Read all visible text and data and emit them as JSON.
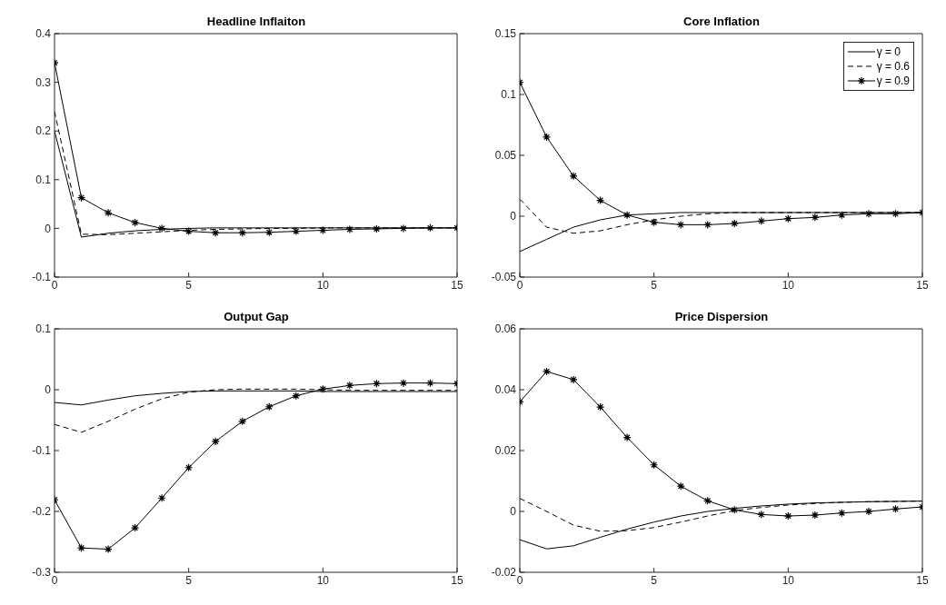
{
  "chart_data": [
    {
      "type": "line",
      "title": "Headline Inflaiton",
      "x": [
        0,
        1,
        2,
        3,
        4,
        5,
        6,
        7,
        8,
        9,
        10,
        11,
        12,
        13,
        14,
        15
      ],
      "xlim": [
        0,
        15
      ],
      "xticks": [
        0,
        5,
        10,
        15
      ],
      "ylim": [
        -0.1,
        0.4
      ],
      "yticks": [
        -0.1,
        0,
        0.1,
        0.2,
        0.3,
        0.4
      ],
      "legend": false,
      "series": [
        {
          "color": "#000000",
          "line_style": "solid",
          "marker": "none",
          "values": [
            0.2,
            -0.018,
            -0.01,
            -0.005,
            -0.002,
            0,
            0.001,
            0.001,
            0.001,
            0.001,
            0.001,
            0.001,
            0.001,
            0.001,
            0.001,
            0.001
          ]
        },
        {
          "color": "#000000",
          "line_style": "dashed",
          "marker": "none",
          "values": [
            0.24,
            -0.012,
            -0.013,
            -0.01,
            -0.007,
            -0.004,
            -0.002,
            -0.001,
            0,
            0,
            0.001,
            0.001,
            0.001,
            0.001,
            0.001,
            0.001
          ]
        },
        {
          "color": "#000000",
          "line_style": "solid",
          "marker": "cross",
          "values": [
            0.34,
            0.063,
            0.032,
            0.012,
            0,
            -0.006,
            -0.009,
            -0.009,
            -0.008,
            -0.006,
            -0.004,
            -0.002,
            -0.001,
            0,
            0.001,
            0.001
          ]
        }
      ]
    },
    {
      "type": "line",
      "title": "Core Inflation",
      "x": [
        0,
        1,
        2,
        3,
        4,
        5,
        6,
        7,
        8,
        9,
        10,
        11,
        12,
        13,
        14,
        15
      ],
      "xlim": [
        0,
        15
      ],
      "xticks": [
        0,
        5,
        10,
        15
      ],
      "ylim": [
        -0.05,
        0.15
      ],
      "yticks": [
        -0.05,
        0,
        0.05,
        0.1,
        0.15
      ],
      "legend": "top right",
      "series": [
        {
          "name": "γ = 0",
          "color": "#000000",
          "line_style": "solid",
          "marker": "none",
          "values": [
            -0.029,
            -0.019,
            -0.009,
            -0.003,
            0.001,
            0.002,
            0.003,
            0.003,
            0.003,
            0.003,
            0.003,
            0.003,
            0.003,
            0.003,
            0.003,
            0.003
          ]
        },
        {
          "name": "γ = 0.6",
          "color": "#000000",
          "line_style": "dashed",
          "marker": "none",
          "values": [
            0.014,
            -0.009,
            -0.014,
            -0.012,
            -0.007,
            -0.003,
            0,
            0.002,
            0.003,
            0.003,
            0.003,
            0.003,
            0.003,
            0.003,
            0.003,
            0.003
          ]
        },
        {
          "name": "γ = 0.9",
          "color": "#000000",
          "line_style": "solid",
          "marker": "cross",
          "values": [
            0.11,
            0.065,
            0.033,
            0.013,
            0.001,
            -0.005,
            -0.007,
            -0.007,
            -0.006,
            -0.004,
            -0.002,
            -0.001,
            0.001,
            0.002,
            0.002,
            0.003
          ]
        }
      ]
    },
    {
      "type": "line",
      "title": "Output Gap",
      "x": [
        0,
        1,
        2,
        3,
        4,
        5,
        6,
        7,
        8,
        9,
        10,
        11,
        12,
        13,
        14,
        15
      ],
      "xlim": [
        0,
        15
      ],
      "xticks": [
        0,
        5,
        10,
        15
      ],
      "ylim": [
        -0.3,
        0.1
      ],
      "yticks": [
        -0.3,
        -0.2,
        -0.1,
        0,
        0.1
      ],
      "legend": false,
      "series": [
        {
          "color": "#000000",
          "line_style": "solid",
          "marker": "none",
          "values": [
            -0.021,
            -0.025,
            -0.017,
            -0.01,
            -0.006,
            -0.003,
            -0.002,
            -0.002,
            -0.002,
            -0.002,
            -0.003,
            -0.003,
            -0.003,
            -0.003,
            -0.003,
            -0.003
          ]
        },
        {
          "color": "#000000",
          "line_style": "dashed",
          "marker": "none",
          "values": [
            -0.057,
            -0.07,
            -0.052,
            -0.032,
            -0.015,
            -0.004,
            0,
            0.001,
            0.001,
            0.001,
            0,
            -0.001,
            -0.001,
            -0.001,
            -0.001,
            -0.001
          ]
        },
        {
          "color": "#000000",
          "line_style": "solid",
          "marker": "cross",
          "values": [
            -0.181,
            -0.26,
            -0.262,
            -0.227,
            -0.178,
            -0.128,
            -0.085,
            -0.052,
            -0.028,
            -0.01,
            0.001,
            0.007,
            0.01,
            0.011,
            0.011,
            0.01
          ]
        }
      ]
    },
    {
      "type": "line",
      "title": "Price Dispersion",
      "x": [
        0,
        1,
        2,
        3,
        4,
        5,
        6,
        7,
        8,
        9,
        10,
        11,
        12,
        13,
        14,
        15
      ],
      "xlim": [
        0,
        15
      ],
      "xticks": [
        0,
        5,
        10,
        15
      ],
      "ylim": [
        -0.02,
        0.06
      ],
      "yticks": [
        -0.02,
        0,
        0.02,
        0.04,
        0.06
      ],
      "legend": false,
      "series": [
        {
          "color": "#000000",
          "line_style": "solid",
          "marker": "none",
          "values": [
            -0.0093,
            -0.0123,
            -0.0113,
            -0.0085,
            -0.0058,
            -0.0035,
            -0.0015,
            0,
            0.001,
            0.0018,
            0.0024,
            0.0028,
            0.003,
            0.0032,
            0.0033,
            0.0034
          ]
        },
        {
          "color": "#000000",
          "line_style": "dashed",
          "marker": "none",
          "values": [
            0.0043,
            0,
            -0.0045,
            -0.0065,
            -0.0063,
            -0.0053,
            -0.0035,
            -0.0015,
            0.0003,
            0.0013,
            0.0021,
            0.0026,
            0.003,
            0.0032,
            0.0033,
            0.0034
          ]
        },
        {
          "color": "#000000",
          "line_style": "solid",
          "marker": "cross",
          "values": [
            0.036,
            0.046,
            0.0433,
            0.0343,
            0.0243,
            0.0153,
            0.0083,
            0.0035,
            0.0005,
            -0.001,
            -0.0015,
            -0.0012,
            -0.0005,
            0,
            0.0008,
            0.0015
          ]
        }
      ]
    }
  ]
}
